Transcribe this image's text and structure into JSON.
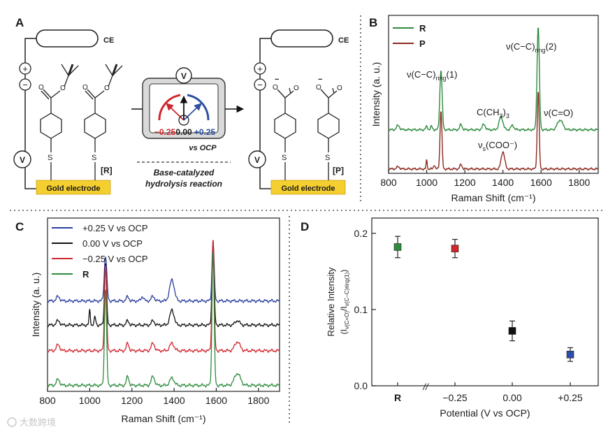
{
  "panels": {
    "A": {
      "letter": "A",
      "ce": "CE",
      "plus": "+",
      "minus": "−",
      "v": "V",
      "s": "S",
      "gold": "Gold electrode",
      "R_bracket": "[R]",
      "P_bracket": "[P]",
      "meter_left": "−0.25",
      "meter_mid": "0.00",
      "meter_right": "+0.25",
      "meter_vs": "vs OCP",
      "reaction_line1": "Base-catalyzed",
      "reaction_line2": "hydrolysis reaction",
      "colors": {
        "gold": "#f4cf2f",
        "red": "#d0262c",
        "blue": "#2f4fa3"
      }
    },
    "B": {
      "letter": "B"
    },
    "C": {
      "letter": "C"
    },
    "D": {
      "letter": "D"
    }
  },
  "watermark": "大数跨境",
  "chart_data": [
    {
      "panel": "B",
      "type": "line",
      "xlabel": "Raman Shift (cm⁻¹)",
      "ylabel": "Intensity (a. u.)",
      "xlim": [
        800,
        1900
      ],
      "xticks": [
        800,
        1000,
        1200,
        1400,
        1600,
        1800
      ],
      "legend_position": "top-left",
      "series": [
        {
          "name": "R",
          "color": "#2e8b3e",
          "baseline": 0.4,
          "peaks": [
            [
              1075,
              0.55,
              6
            ],
            [
              1585,
              0.95,
              6
            ],
            [
              1180,
              0.05,
              6
            ],
            [
              1300,
              0.05,
              8
            ],
            [
              1390,
              0.12,
              10
            ],
            [
              1450,
              0.04,
              8
            ],
            [
              1700,
              0.09,
              14
            ],
            [
              1000,
              0.03,
              5
            ],
            [
              1025,
              0.03,
              5
            ],
            [
              850,
              0.04,
              8
            ]
          ]
        },
        {
          "name": "P",
          "color": "#8b2a1f",
          "baseline": 0.04,
          "peaks": [
            [
              1075,
              0.54,
              5
            ],
            [
              1585,
              0.72,
              5
            ],
            [
              1400,
              0.16,
              9
            ],
            [
              1180,
              0.04,
              6
            ],
            [
              1000,
              0.08,
              3
            ],
            [
              1040,
              0.04,
              4
            ],
            [
              850,
              0.02,
              8
            ]
          ]
        }
      ],
      "annotations": {
        "ring1_main": "ν(C−C)",
        "ring1_sub": "ring",
        "ring1_num": "(1)",
        "ring2_main": "ν(C−C)",
        "ring2_sub": "ring",
        "ring2_num": "(2)",
        "ch3_main": "C(CH",
        "ch3_sub": "3",
        "ch3_close": ")",
        "ch3_sub2": "3",
        "co": "ν(C=O)",
        "coo_main": "ν",
        "coo_sub": "s",
        "coo_rest": "(COO⁻)"
      }
    },
    {
      "panel": "C",
      "type": "line",
      "xlabel": "Raman Shift (cm⁻¹)",
      "ylabel": "Intensity (a. u.)",
      "xlim": [
        800,
        1900
      ],
      "xticks": [
        800,
        1000,
        1200,
        1400,
        1600,
        1800
      ],
      "legend_position": "top-left",
      "series": [
        {
          "name": "+0.25 V vs OCP",
          "color": "#2b3f9e",
          "baseline": 0.6,
          "peaks": [
            [
              1075,
              0.3,
              6
            ],
            [
              1585,
              0.4,
              5
            ],
            [
              1390,
              0.14,
              11
            ],
            [
              1180,
              0.03,
              6
            ],
            [
              1250,
              0.03,
              6
            ],
            [
              1300,
              0.03,
              8
            ],
            [
              850,
              0.03,
              8
            ]
          ]
        },
        {
          "name": "0.00 V vs OCP",
          "color": "#111111",
          "baseline": 0.44,
          "peaks": [
            [
              1075,
              0.42,
              5
            ],
            [
              1585,
              0.55,
              5
            ],
            [
              1390,
              0.1,
              10
            ],
            [
              1000,
              0.1,
              3
            ],
            [
              1025,
              0.05,
              4
            ],
            [
              1180,
              0.03,
              6
            ],
            [
              1300,
              0.03,
              7
            ],
            [
              1700,
              0.03,
              10
            ],
            [
              850,
              0.03,
              8
            ]
          ]
        },
        {
          "name": "−0.25 V vs OCP",
          "color": "#d0262c",
          "baseline": 0.27,
          "peaks": [
            [
              1075,
              0.58,
              5
            ],
            [
              1585,
              0.75,
              5
            ],
            [
              1180,
              0.05,
              6
            ],
            [
              1300,
              0.05,
              8
            ],
            [
              1390,
              0.05,
              10
            ],
            [
              1700,
              0.06,
              12
            ],
            [
              850,
              0.04,
              8
            ]
          ]
        },
        {
          "name": "R",
          "color": "#2e8b3e",
          "baseline": 0.04,
          "peaks": [
            [
              1075,
              0.65,
              5
            ],
            [
              1585,
              0.9,
              5
            ],
            [
              1180,
              0.06,
              6
            ],
            [
              1300,
              0.06,
              8
            ],
            [
              1390,
              0.05,
              10
            ],
            [
              1700,
              0.08,
              14
            ],
            [
              850,
              0.04,
              8
            ]
          ]
        }
      ]
    },
    {
      "panel": "D",
      "type": "scatter",
      "xlabel": "Potential (V vs OCP)",
      "ylabel_line1": "Relative Intensity",
      "ylabel_line2_main": "(I",
      "ylabel_line2_sub1": "ν(C=O)",
      "ylabel_line2_slash": "/I",
      "ylabel_line2_sub2": "ν(C−C)ring(1)",
      "ylabel_line2_close": ")",
      "ylim": [
        0.0,
        0.22
      ],
      "yticks": [
        0.0,
        0.1,
        0.2
      ],
      "ytick_labels": [
        "0.0",
        "0.1",
        "0.2"
      ],
      "categories": [
        "R",
        "−0.25",
        "0.00",
        "+0.25"
      ],
      "values": [
        0.182,
        0.18,
        0.072,
        0.041
      ],
      "errors": [
        0.014,
        0.012,
        0.013,
        0.009
      ],
      "colors": [
        "#2e8b3e",
        "#d0262c",
        "#111111",
        "#2b4fa8"
      ],
      "break_mark": "//"
    }
  ]
}
